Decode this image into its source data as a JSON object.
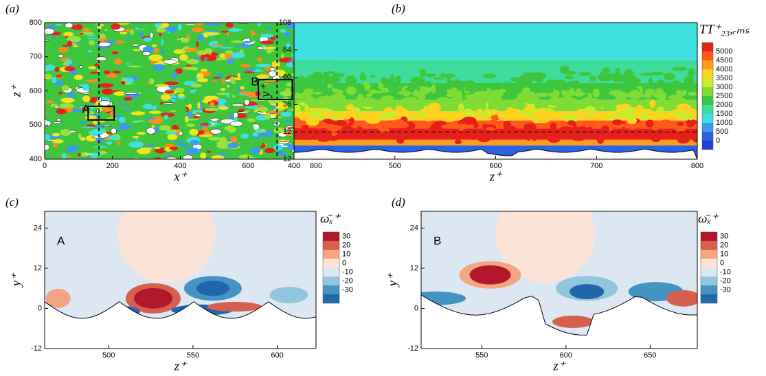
{
  "chart_data": [
    {
      "type": "contour",
      "panel_label": "(a)",
      "xlabel": "x⁺",
      "ylabel": "z⁺",
      "xlim": [
        0,
        800
      ],
      "ylim": [
        400,
        800
      ],
      "xticks": [
        0,
        200,
        400,
        600,
        800
      ],
      "yticks": [
        400,
        500,
        600,
        700,
        800
      ],
      "colorbar": {
        "title": "TT⁺₂₃,ᵣₘₛ",
        "ticks": [
          3000,
          2500,
          2000,
          1500,
          1000,
          500,
          0
        ],
        "colors": [
          "#e8201c",
          "#ff8c1a",
          "#f2e51f",
          "#9be23a",
          "#3ec63e",
          "#3fe0e0",
          "#3d9af0",
          "#1f3ddb"
        ]
      },
      "annotations": [
        "A",
        "B"
      ]
    },
    {
      "type": "contour",
      "panel_label": "(b)",
      "xlabel": "z⁺",
      "ylabel": "y⁺",
      "xlim": [
        400,
        800
      ],
      "ylim": [
        -12,
        108
      ],
      "xticks": [
        400,
        500,
        600,
        700,
        800
      ],
      "yticks": [
        -12,
        12,
        36,
        60,
        84,
        108
      ],
      "colorbar": {
        "title": "TT⁺₂₃,ᵣₘₛ",
        "ticks": [
          5000,
          4500,
          4000,
          3500,
          3000,
          2500,
          2000,
          1500,
          1000,
          500,
          0
        ],
        "colors": [
          "#e8201c",
          "#ff5a1a",
          "#ff9c1a",
          "#ffd21f",
          "#c9ec2a",
          "#7fdc34",
          "#3ec63e",
          "#3ddc9a",
          "#3fe0e0",
          "#3d9af0",
          "#2a62e6",
          "#1f3ddb"
        ]
      }
    },
    {
      "type": "contour",
      "panel_label": "(c)",
      "xlabel": "z⁺",
      "ylabel": "y⁺",
      "xlim": [
        462,
        623
      ],
      "ylim": [
        -12,
        29
      ],
      "xticks": [
        500,
        550,
        600
      ],
      "yticks": [
        -12,
        0,
        12,
        24
      ],
      "colorbar": {
        "title": "ω̄ₓ⁺",
        "ticks": [
          30,
          20,
          10,
          0,
          -10,
          -20,
          -30
        ],
        "colors": [
          "#b2182b",
          "#d6604d",
          "#f4a582",
          "#fbe3d8",
          "#dce7f1",
          "#92c5de",
          "#4393c3",
          "#2166ac"
        ]
      },
      "annotations": [
        "A"
      ]
    },
    {
      "type": "contour",
      "panel_label": "(d)",
      "xlabel": "z⁺",
      "ylabel": "y⁺",
      "xlim": [
        514,
        678
      ],
      "ylim": [
        -12,
        29
      ],
      "xticks": [
        550,
        600,
        650
      ],
      "yticks": [
        -12,
        0,
        12,
        24
      ],
      "colorbar": {
        "title": "ω̄ₓ⁺",
        "ticks": [
          30,
          20,
          10,
          0,
          -10,
          -20,
          -30
        ],
        "colors": [
          "#b2182b",
          "#d6604d",
          "#f4a582",
          "#fbe3d8",
          "#dce7f1",
          "#92c5de",
          "#4393c3",
          "#2166ac"
        ]
      },
      "annotations": [
        "B"
      ]
    }
  ]
}
